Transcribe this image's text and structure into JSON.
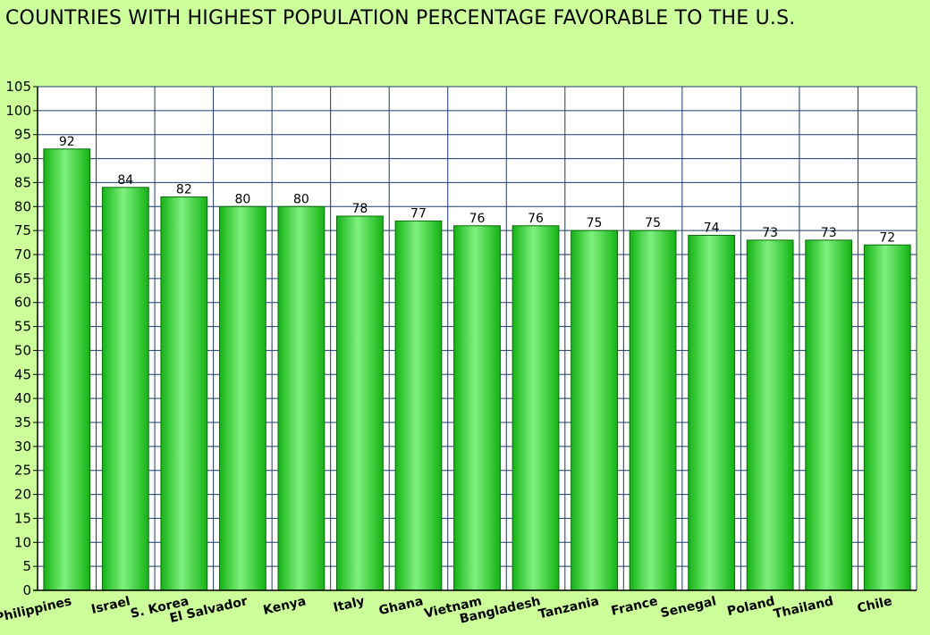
{
  "chart_data": {
    "type": "bar",
    "title": "COUNTRIES WITH HIGHEST POPULATION PERCENTAGE FAVORABLE TO THE U.S.",
    "categories": [
      "Philippines",
      "Israel",
      "S. Korea",
      "El Salvador",
      "Kenya",
      "Italy",
      "Ghana",
      "Vietnam",
      "Bangladesh",
      "Tanzania",
      "France",
      "Senegal",
      "Poland",
      "Thailand",
      "Chile"
    ],
    "values": [
      92,
      84,
      82,
      80,
      80,
      78,
      77,
      76,
      76,
      75,
      75,
      74,
      73,
      73,
      72
    ],
    "ylim": [
      0,
      105
    ],
    "ytick_step": 5,
    "grid": true,
    "data_labels": true,
    "colors": {
      "background": "#ccff99",
      "plot_background": "#ffffff",
      "grid": "#1f3a6e",
      "bar": "#13b413",
      "bar_highlight": "#7ff07f",
      "bar_edge": "#0a6a0a"
    }
  }
}
